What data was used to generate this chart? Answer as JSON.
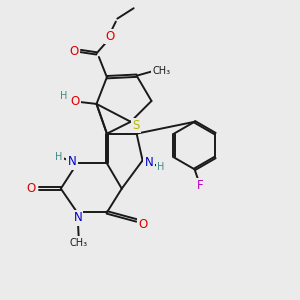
{
  "bg_color": "#ebebeb",
  "bond_color": "#1a1a1a",
  "bond_lw": 1.4,
  "dbl_off": 0.045,
  "colors": {
    "O": "#dd0000",
    "N": "#0000cc",
    "S": "#b8b800",
    "F": "#bb00bb",
    "H": "#448888",
    "C": "#1a1a1a"
  },
  "fs": 8.5,
  "fs_sm": 7.0
}
